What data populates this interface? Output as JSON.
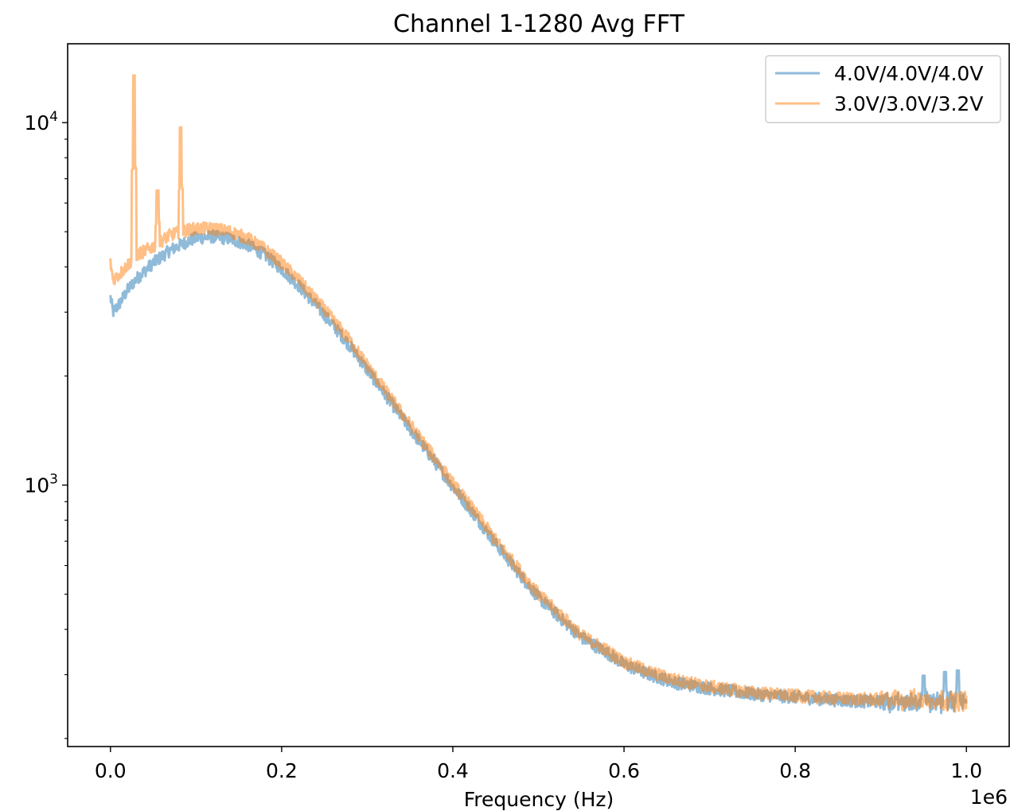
{
  "chart_data": {
    "type": "line",
    "title": "Channel 1-1280 Avg FFT",
    "xlabel": "Frequency (Hz)",
    "ylabel": "",
    "x_offset_label": "1e6",
    "x_scale": 1000000,
    "yscale": "log",
    "xlim": [
      -0.05,
      1.05
    ],
    "ylim": [
      190,
      16500
    ],
    "xticks": [
      0.0,
      0.2,
      0.4,
      0.6,
      0.8,
      1.0
    ],
    "xtick_labels": [
      "0.0",
      "0.2",
      "0.4",
      "0.6",
      "0.8",
      "1.0"
    ],
    "yticks_major": [
      {
        "value": 1000,
        "base": "10",
        "exp": "3"
      },
      {
        "value": 10000,
        "base": "10",
        "exp": "4"
      }
    ],
    "yticks_minor": [
      200,
      300,
      400,
      500,
      600,
      700,
      800,
      900,
      2000,
      3000,
      4000,
      5000,
      6000,
      7000,
      8000,
      9000
    ],
    "grid": false,
    "legend_position": "top-right",
    "series": [
      {
        "name": "4.0V/4.0V/4.0V",
        "color": "#1f77b4",
        "opacity": 0.5,
        "x": [
          0.0,
          0.003,
          0.01,
          0.02,
          0.03,
          0.05,
          0.07,
          0.09,
          0.1,
          0.12,
          0.14,
          0.16,
          0.18,
          0.2,
          0.22,
          0.25,
          0.28,
          0.3,
          0.32,
          0.35,
          0.38,
          0.4,
          0.42,
          0.45,
          0.48,
          0.5,
          0.53,
          0.55,
          0.58,
          0.6,
          0.63,
          0.66,
          0.7,
          0.75,
          0.8,
          0.85,
          0.9,
          0.95,
          0.98,
          1.0
        ],
        "y": [
          3300,
          3000,
          3150,
          3450,
          3700,
          4100,
          4450,
          4700,
          4800,
          4850,
          4780,
          4600,
          4320,
          3950,
          3550,
          2950,
          2420,
          2080,
          1790,
          1430,
          1150,
          990,
          860,
          690,
          560,
          490,
          420,
          380,
          345,
          320,
          300,
          285,
          275,
          265,
          260,
          255,
          252,
          252,
          252,
          250
        ]
      },
      {
        "name": "3.0V/3.0V/3.2V",
        "color": "#ff7f0e",
        "opacity": 0.5,
        "x": [
          0.0,
          0.003,
          0.01,
          0.02,
          0.03,
          0.05,
          0.07,
          0.09,
          0.1,
          0.12,
          0.14,
          0.16,
          0.18,
          0.2,
          0.22,
          0.25,
          0.28,
          0.3,
          0.32,
          0.35,
          0.38,
          0.4,
          0.42,
          0.45,
          0.48,
          0.5,
          0.53,
          0.55,
          0.58,
          0.6,
          0.63,
          0.66,
          0.7,
          0.75,
          0.8,
          0.85,
          0.9,
          0.95,
          0.98,
          1.0
        ],
        "y": [
          4100,
          3700,
          3800,
          4050,
          4300,
          4550,
          4900,
          5050,
          5100,
          5100,
          5000,
          4800,
          4480,
          4100,
          3680,
          3050,
          2500,
          2140,
          1840,
          1470,
          1180,
          1010,
          880,
          705,
          575,
          500,
          430,
          385,
          350,
          325,
          305,
          290,
          278,
          268,
          262,
          258,
          256,
          255,
          255,
          253
        ]
      }
    ],
    "annotations": [
      {
        "series": "3.0V/3.0V/3.2V",
        "x": 0.0275,
        "y": 13500
      },
      {
        "series": "3.0V/3.0V/3.2V",
        "x": 0.055,
        "y": 6500
      },
      {
        "series": "3.0V/3.0V/3.2V",
        "x": 0.082,
        "y": 9700
      },
      {
        "series": "4.0V/4.0V/4.0V",
        "x": 0.95,
        "y": 298
      },
      {
        "series": "4.0V/4.0V/4.0V",
        "x": 0.975,
        "y": 305
      },
      {
        "series": "4.0V/4.0V/4.0V",
        "x": 0.99,
        "y": 308
      }
    ]
  }
}
